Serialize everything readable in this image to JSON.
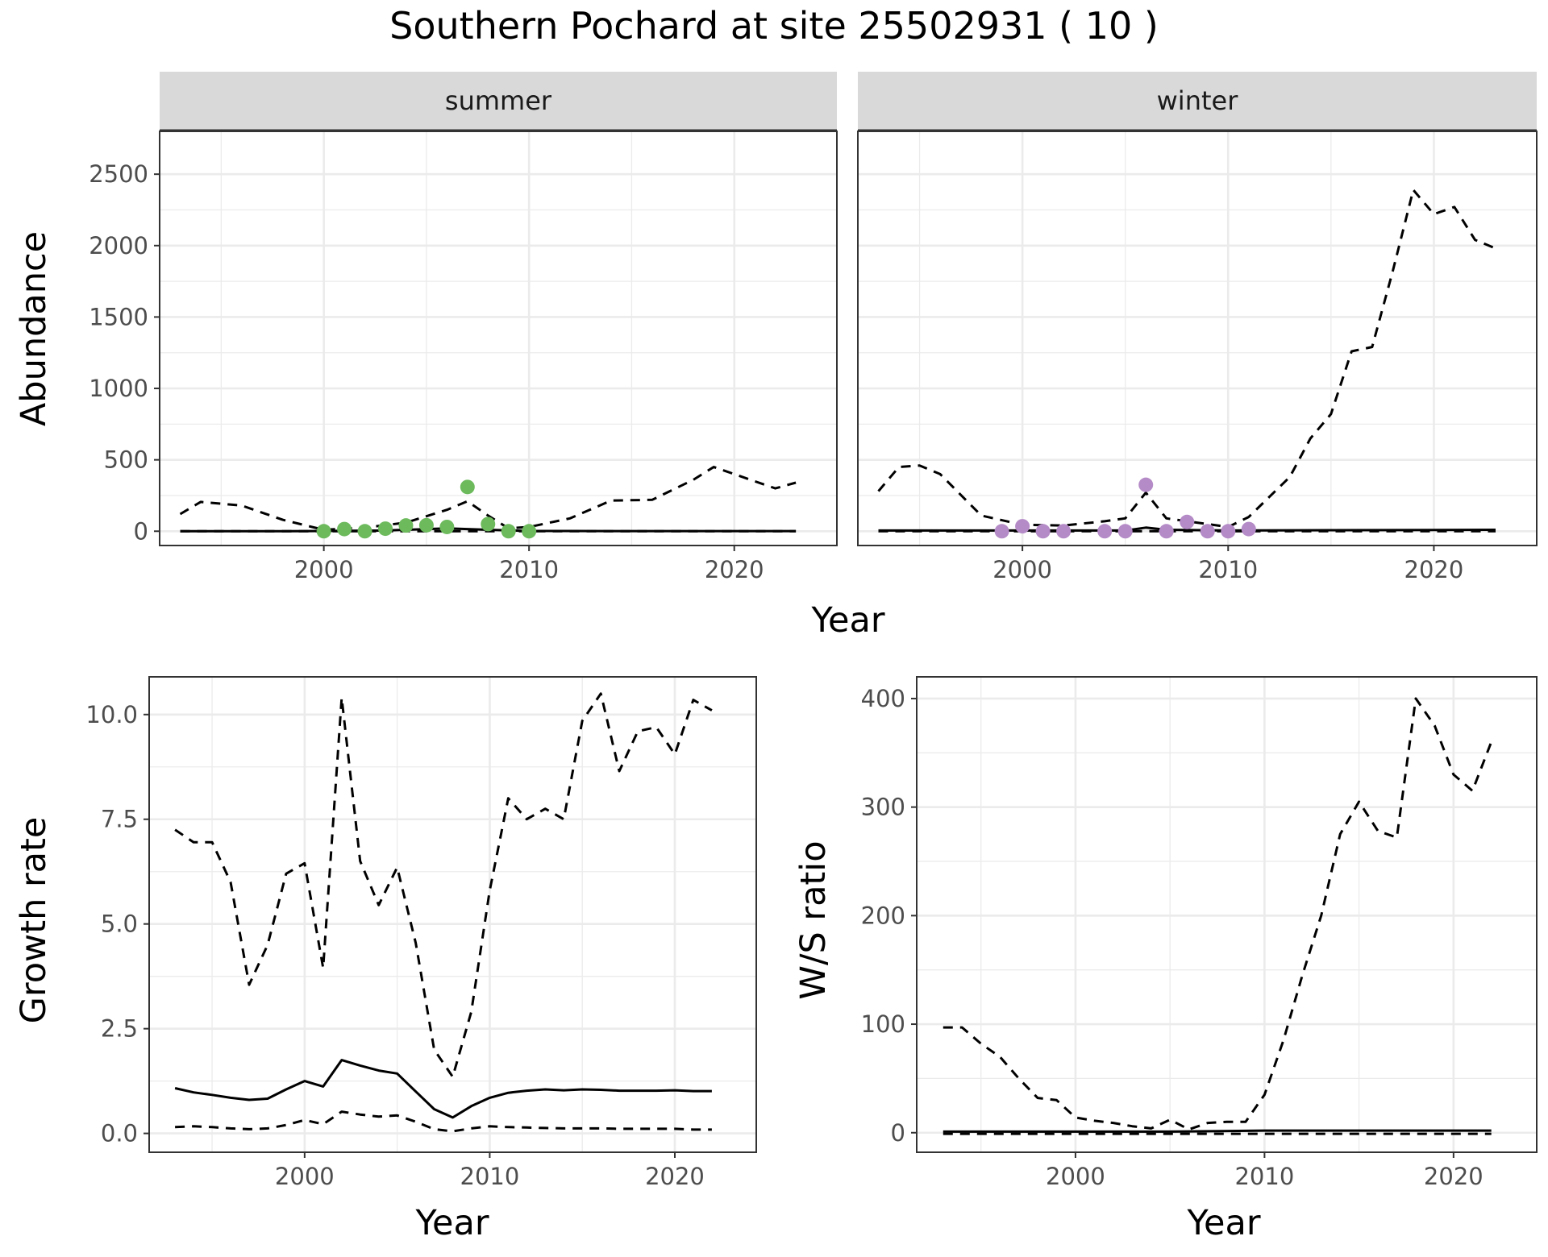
{
  "title": "Southern Pochard at site 25502931 ( 10 )",
  "colors": {
    "summer_points": "#6cba5c",
    "winter_points": "#b48ac7",
    "line": "#000000",
    "grid": "#ebebeb",
    "strip": "#d9d9d9"
  },
  "chart_data": [
    {
      "type": "line",
      "panel": "summer",
      "strip_label": "summer",
      "xlabel": "Year",
      "ylabel": "Abundance",
      "xlim": [
        1992,
        2025
      ],
      "ylim": [
        -100,
        2800
      ],
      "xticks": [
        2000,
        2010,
        2020
      ],
      "yticks": [
        0,
        500,
        1000,
        1500,
        2000,
        2500
      ],
      "points": {
        "x": [
          2000,
          2001,
          2002,
          2003,
          2004,
          2005,
          2006,
          2007,
          2008,
          2009,
          2010
        ],
        "y": [
          0,
          15,
          0,
          18,
          40,
          42,
          30,
          310,
          50,
          0,
          0
        ]
      },
      "series": [
        {
          "style": "solid",
          "x": [
            1993,
            1998,
            2003,
            2006,
            2008,
            2010,
            2015,
            2023
          ],
          "y": [
            0,
            0,
            5,
            20,
            10,
            2,
            1,
            1
          ]
        },
        {
          "style": "dashed",
          "x": [
            1993,
            1994,
            1996,
            1998,
            2000,
            2002,
            2004,
            2006,
            2007,
            2008,
            2009,
            2010,
            2012,
            2014,
            2016,
            2018,
            2019,
            2020,
            2022,
            2023
          ],
          "y": [
            120,
            205,
            180,
            80,
            10,
            25,
            60,
            150,
            210,
            110,
            20,
            30,
            90,
            215,
            220,
            360,
            450,
            400,
            300,
            340
          ]
        },
        {
          "style": "dashed",
          "x": [
            1993,
            2023
          ],
          "y": [
            0,
            0
          ]
        }
      ]
    },
    {
      "type": "line",
      "panel": "winter",
      "strip_label": "winter",
      "xlabel": "Year",
      "ylabel": "",
      "xlim": [
        1992,
        2025
      ],
      "ylim": [
        -100,
        2800
      ],
      "xticks": [
        2000,
        2010,
        2020
      ],
      "yticks": [
        0,
        500,
        1000,
        1500,
        2000,
        2500
      ],
      "points": {
        "x": [
          1999,
          2000,
          2001,
          2002,
          2004,
          2005,
          2006,
          2007,
          2008,
          2009,
          2010,
          2011
        ],
        "y": [
          0,
          35,
          0,
          0,
          0,
          0,
          325,
          0,
          65,
          0,
          0,
          15
        ]
      },
      "series": [
        {
          "style": "solid",
          "x": [
            1993,
            2005,
            2006,
            2007,
            2010,
            2023
          ],
          "y": [
            5,
            5,
            25,
            10,
            5,
            10
          ]
        },
        {
          "style": "dashed",
          "x": [
            1993,
            1994,
            1995,
            1996,
            1998,
            2000,
            2002,
            2004,
            2005,
            2006,
            2007,
            2010,
            2011,
            2013,
            2014,
            2015,
            2016,
            2017,
            2018,
            2019,
            2020,
            2021,
            2022,
            2023
          ],
          "y": [
            280,
            450,
            460,
            400,
            110,
            45,
            40,
            70,
            90,
            270,
            90,
            30,
            100,
            380,
            650,
            820,
            1260,
            1290,
            1820,
            2390,
            2220,
            2270,
            2040,
            1980
          ]
        },
        {
          "style": "dashed",
          "x": [
            1993,
            2023
          ],
          "y": [
            0,
            0
          ]
        }
      ]
    },
    {
      "type": "line",
      "panel": "growth",
      "xlabel": "Year",
      "ylabel": "Growth rate",
      "xlim": [
        1991.6,
        2024.4
      ],
      "ylim": [
        -0.45,
        10.9
      ],
      "xticks": [
        2000,
        2010,
        2020
      ],
      "yticks": [
        0.0,
        2.5,
        5.0,
        7.5,
        10.0
      ],
      "ytick_labels": [
        "0.0",
        "2.5",
        "5.0",
        "7.5",
        "10.0"
      ],
      "series": [
        {
          "style": "solid",
          "x": [
            1993,
            1994,
            1995,
            1996,
            1997,
            1998,
            1999,
            2000,
            2001,
            2002,
            2003,
            2004,
            2005,
            2006,
            2007,
            2008,
            2009,
            2010,
            2011,
            2012,
            2013,
            2014,
            2015,
            2016,
            2017,
            2018,
            2019,
            2020,
            2021,
            2022
          ],
          "y": [
            1.08,
            0.98,
            0.92,
            0.85,
            0.8,
            0.83,
            1.05,
            1.25,
            1.12,
            1.75,
            1.62,
            1.5,
            1.43,
            1.0,
            0.58,
            0.38,
            0.65,
            0.85,
            0.97,
            1.02,
            1.05,
            1.03,
            1.05,
            1.04,
            1.02,
            1.02,
            1.02,
            1.03,
            1.01,
            1.01
          ]
        },
        {
          "style": "dashed",
          "x": [
            1993,
            1994,
            1995,
            1996,
            1997,
            1998,
            1999,
            2000,
            2001,
            2002,
            2003,
            2004,
            2005,
            2006,
            2007,
            2008,
            2009,
            2010,
            2011,
            2012,
            2013,
            2014,
            2015,
            2016,
            2017,
            2018,
            2019,
            2020,
            2021,
            2022
          ],
          "y": [
            7.25,
            6.95,
            6.95,
            6.0,
            3.55,
            4.5,
            6.2,
            6.45,
            3.95,
            10.4,
            6.5,
            5.45,
            6.35,
            4.55,
            2.0,
            1.35,
            2.9,
            5.8,
            8.0,
            7.5,
            7.75,
            7.5,
            9.85,
            10.5,
            8.65,
            9.6,
            9.7,
            9.05,
            10.35,
            10.1
          ]
        },
        {
          "style": "dashed",
          "x": [
            1993,
            1994,
            1995,
            1996,
            1997,
            1998,
            1999,
            2000,
            2001,
            2002,
            2003,
            2004,
            2005,
            2006,
            2007,
            2008,
            2009,
            2010,
            2011,
            2012,
            2013,
            2014,
            2015,
            2016,
            2017,
            2018,
            2019,
            2020,
            2021,
            2022
          ],
          "y": [
            0.15,
            0.17,
            0.15,
            0.12,
            0.1,
            0.12,
            0.2,
            0.32,
            0.22,
            0.52,
            0.45,
            0.4,
            0.43,
            0.28,
            0.1,
            0.05,
            0.12,
            0.17,
            0.15,
            0.14,
            0.13,
            0.12,
            0.12,
            0.12,
            0.11,
            0.11,
            0.11,
            0.11,
            0.09,
            0.09
          ]
        }
      ]
    },
    {
      "type": "line",
      "panel": "ws_ratio",
      "xlabel": "Year",
      "ylabel": "W/S ratio",
      "xlim": [
        1991.6,
        2024.4
      ],
      "ylim": [
        -18,
        420
      ],
      "xticks": [
        2000,
        2010,
        2020
      ],
      "yticks": [
        0,
        100,
        200,
        300,
        400
      ],
      "series": [
        {
          "style": "solid",
          "x": [
            1993,
            2000,
            2005,
            2010,
            2022
          ],
          "y": [
            1,
            1,
            1,
            2,
            2
          ]
        },
        {
          "style": "dashed",
          "x": [
            1993,
            1994,
            1995,
            1996,
            1997,
            1998,
            1999,
            2000,
            2001,
            2002,
            2003,
            2004,
            2005,
            2006,
            2007,
            2008,
            2009,
            2010,
            2011,
            2012,
            2013,
            2014,
            2015,
            2016,
            2017,
            2018,
            2019,
            2020,
            2021,
            2022
          ],
          "y": [
            97,
            97,
            82,
            70,
            50,
            32,
            30,
            14,
            11,
            9,
            6,
            4,
            12,
            3,
            9,
            10,
            10,
            35,
            85,
            145,
            200,
            275,
            305,
            278,
            272,
            400,
            375,
            330,
            315,
            360
          ]
        },
        {
          "style": "dashed",
          "x": [
            1993,
            2022
          ],
          "y": [
            -1,
            -1
          ]
        }
      ]
    }
  ]
}
